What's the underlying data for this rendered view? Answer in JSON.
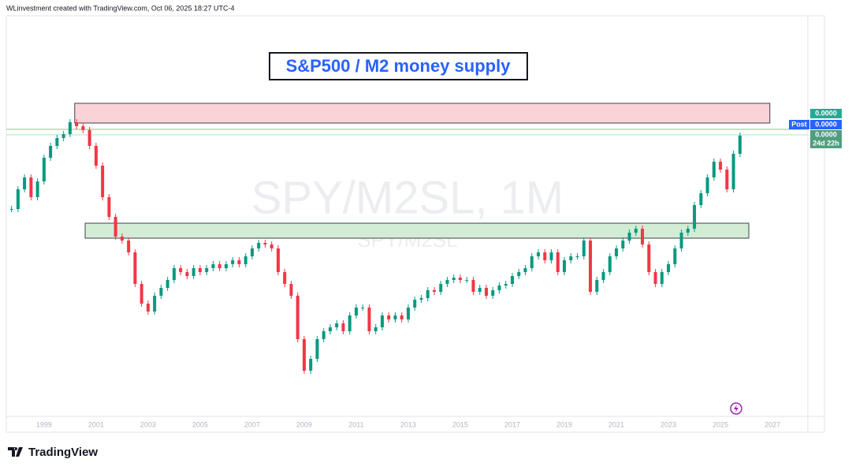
{
  "header": "WLinvestment created with TradingView.com, Oct 06, 2025 18:27 UTC-4",
  "footer": "TradingView",
  "chart_data": {
    "type": "candlestick",
    "title": "S&P500 / M2 money supply",
    "watermark": "SPY/M2SL, 1M",
    "watermark_sub": "SPY/M2SL",
    "up_color": "#089981",
    "down_color": "#f23645",
    "x": [
      1997.75,
      1998,
      1998.25,
      1998.5,
      1998.75,
      1999,
      1999.25,
      1999.5,
      1999.75,
      2000,
      2000.25,
      2000.5,
      2000.75,
      2001,
      2001.25,
      2001.5,
      2001.75,
      2002,
      2002.25,
      2002.5,
      2002.75,
      2003,
      2003.25,
      2003.5,
      2003.75,
      2004,
      2004.25,
      2004.5,
      2004.75,
      2005,
      2005.25,
      2005.5,
      2005.75,
      2006,
      2006.25,
      2006.5,
      2006.75,
      2007,
      2007.25,
      2007.5,
      2007.75,
      2008,
      2008.25,
      2008.5,
      2008.75,
      2009,
      2009.25,
      2009.5,
      2009.75,
      2010,
      2010.25,
      2010.5,
      2010.75,
      2011,
      2011.25,
      2011.5,
      2011.75,
      2012,
      2012.25,
      2012.5,
      2012.75,
      2013,
      2013.25,
      2013.5,
      2013.75,
      2014,
      2014.25,
      2014.5,
      2014.75,
      2015,
      2015.25,
      2015.5,
      2015.75,
      2016,
      2016.25,
      2016.5,
      2016.75,
      2017,
      2017.25,
      2017.5,
      2017.75,
      2018,
      2018.25,
      2018.5,
      2018.75,
      2019,
      2019.25,
      2019.5,
      2019.75,
      2020,
      2020.25,
      2020.5,
      2020.75,
      2021,
      2021.25,
      2021.5,
      2021.75,
      2022,
      2022.25,
      2022.5,
      2022.75,
      2023,
      2023.25,
      2023.5,
      2023.75,
      2024,
      2024.25,
      2024.5,
      2024.75,
      2025,
      2025.25,
      2025.5,
      2025.75
    ],
    "series": [
      {
        "name": "SPY/M2SL",
        "values": [
          263,
          288,
          303,
          278,
          298,
          328,
          343,
          353,
          358,
          373,
          368,
          363,
          343,
          318,
          278,
          253,
          228,
          223,
          208,
          168,
          143,
          133,
          153,
          163,
          173,
          188,
          183,
          178,
          188,
          183,
          188,
          193,
          188,
          193,
          198,
          193,
          203,
          213,
          220,
          218,
          213,
          183,
          168,
          153,
          98,
          58,
          73,
          98,
          108,
          113,
          118,
          108,
          128,
          138,
          138,
          108,
          113,
          128,
          123,
          128,
          123,
          138,
          148,
          150,
          160,
          158,
          168,
          173,
          176,
          173,
          173,
          158,
          163,
          153,
          160,
          166,
          168,
          178,
          183,
          188,
          203,
          208,
          198,
          208,
          183,
          198,
          203,
          203,
          223,
          158,
          173,
          183,
          203,
          213,
          223,
          233,
          238,
          218,
          183,
          168,
          183,
          193,
          213,
          233,
          238,
          268,
          283,
          303,
          323,
          313,
          288,
          333,
          356
        ]
      }
    ],
    "xlim": [
      1997.55,
      2028.36
    ],
    "xticks": [
      1999,
      2001,
      2003,
      2005,
      2007,
      2009,
      2011,
      2013,
      2015,
      2017,
      2019,
      2021,
      2023,
      2025,
      2027
    ],
    "ylim": [
      0,
      508
    ],
    "zones": [
      {
        "color": "#f9d3d6",
        "range": [
          372,
          397
        ],
        "x": [
          2000.18,
          2026.9
        ]
      },
      {
        "color": "#d3ecd6",
        "range": [
          226,
          245
        ],
        "x": [
          2000.58,
          2026.09
        ]
      }
    ],
    "levels": [
      {
        "value": 364,
        "color": "#7cc88a"
      },
      {
        "value": 357,
        "color": "#b7e0c0"
      }
    ],
    "price_scale": [
      "0.0000",
      "Post",
      "0.0000",
      "0.0000",
      "24d 22h"
    ]
  }
}
